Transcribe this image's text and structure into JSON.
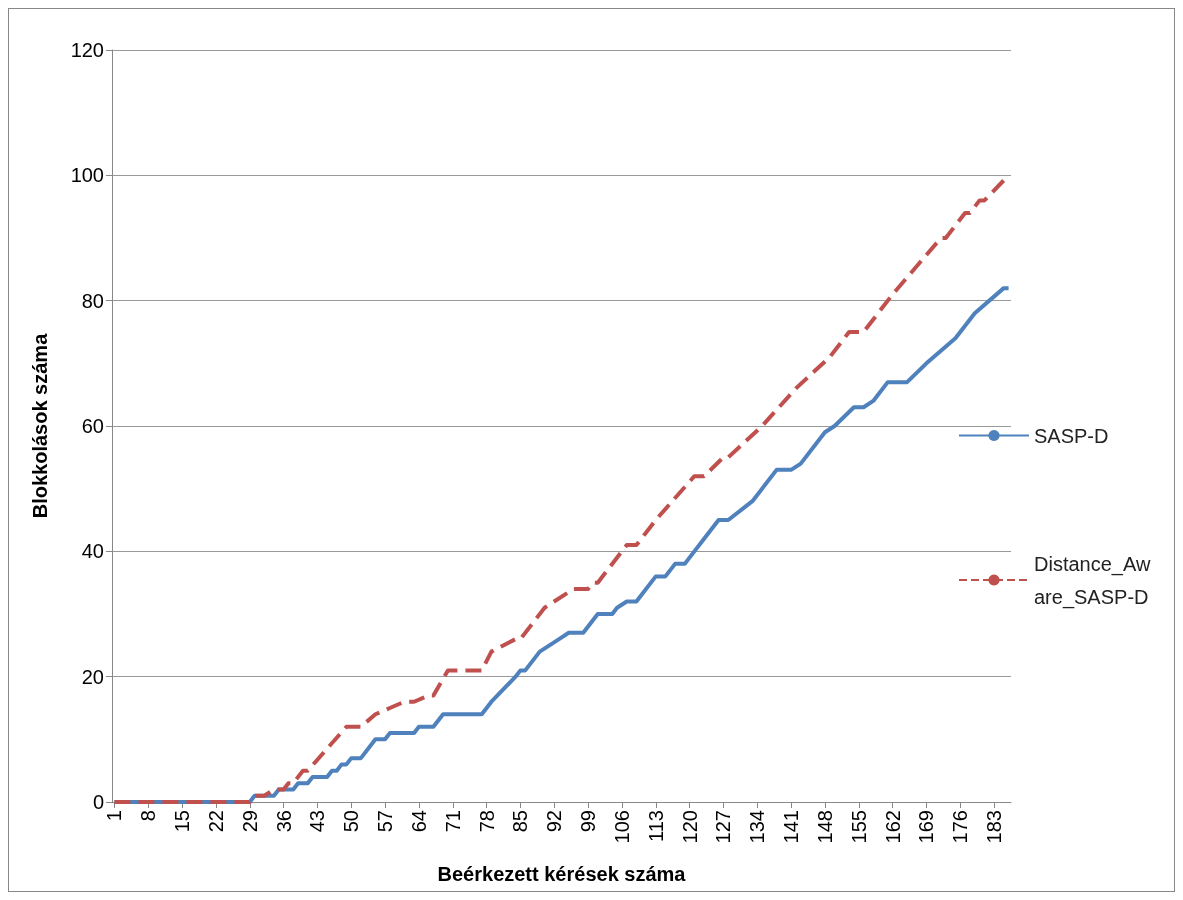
{
  "chart_data": {
    "type": "line",
    "xlabel": "Beérkezett kérések száma",
    "ylabel": "Blokkolások száma",
    "xlim": [
      0.5,
      186.5
    ],
    "xticks": [
      1,
      8,
      15,
      22,
      29,
      36,
      43,
      50,
      57,
      64,
      71,
      78,
      85,
      92,
      99,
      106,
      113,
      120,
      127,
      134,
      141,
      148,
      155,
      162,
      169,
      176,
      183
    ],
    "ylim": [
      0,
      120
    ],
    "yticks": [
      0,
      20,
      40,
      60,
      80,
      100,
      120
    ],
    "grid": "y",
    "legend": "right",
    "marker": "none",
    "series": [
      {
        "name": "SASP-D",
        "color": "#4f81bd",
        "line_style": "solid",
        "x": [
          1,
          29,
          30,
          34,
          35,
          38,
          39,
          41,
          42,
          45,
          46,
          47,
          48,
          49,
          50,
          52,
          55,
          57,
          58,
          63,
          64,
          67,
          69,
          77,
          79,
          84,
          85,
          86,
          89,
          91,
          93,
          95,
          98,
          99,
          101,
          104,
          105,
          107,
          109,
          113,
          115,
          117,
          119,
          123,
          126,
          128,
          133,
          138,
          141,
          143,
          148,
          150,
          154,
          156,
          158,
          161,
          165,
          169,
          172,
          175,
          179,
          185,
          186
        ],
        "values": [
          0,
          0,
          1,
          1,
          2,
          2,
          3,
          3,
          4,
          4,
          5,
          5,
          6,
          6,
          7,
          7,
          10,
          10,
          11,
          11,
          12,
          12,
          14,
          14,
          16,
          20,
          21,
          21,
          24,
          25,
          26,
          27,
          27,
          28,
          30,
          30,
          31,
          32,
          32,
          36,
          36,
          38,
          38,
          42,
          45,
          45,
          48,
          53,
          53,
          54,
          59,
          60,
          63,
          63,
          64,
          67,
          67,
          70,
          72,
          74,
          78,
          82,
          82
        ]
      },
      {
        "name": "Distance_Aware_SASP-D",
        "color": "#c0504d",
        "line_style": "dashed",
        "x": [
          1,
          29,
          30,
          32,
          34,
          36,
          37,
          38,
          40,
          41,
          49,
          52,
          55,
          58,
          61,
          63,
          66,
          67,
          70,
          77,
          79,
          84,
          85,
          90,
          96,
          99,
          100,
          101,
          107,
          109,
          113,
          121,
          123,
          127,
          128,
          135,
          142,
          149,
          153,
          156,
          162,
          172,
          173,
          177,
          178,
          180,
          181,
          186
        ],
        "values": [
          0,
          0,
          1,
          1,
          2,
          2,
          3,
          3,
          5,
          5,
          12,
          12,
          14,
          15,
          16,
          16,
          17,
          17,
          21,
          21,
          24,
          26,
          26,
          31,
          34,
          34,
          35,
          35,
          41,
          41,
          45,
          52,
          52,
          55,
          55,
          60,
          66,
          71,
          75,
          75,
          81,
          90,
          90,
          94,
          94,
          96,
          96,
          100
        ]
      }
    ]
  }
}
